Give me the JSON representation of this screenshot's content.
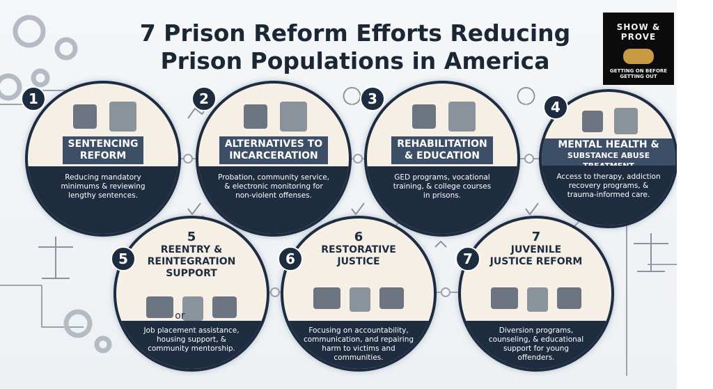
{
  "header": {
    "title_line1": "7 Prison Reform Efforts Reducing",
    "title_line2": "Prison Populations in America"
  },
  "logo": {
    "top": "SHOW & PROVE",
    "bottom": "GETTING ON BEFORE GETTING OUT"
  },
  "items": [
    {
      "number": "1",
      "heading": [
        "SENTENCING",
        "REFORM"
      ],
      "description": [
        "Reducing mandatory",
        "minimums & reviewing",
        "lengthy sentences."
      ]
    },
    {
      "number": "2",
      "heading": [
        "ALTERNATIVES TO",
        "INCARCERATION"
      ],
      "description": [
        "Probation, community service,",
        "& electronic monitoring for",
        "non-violent offenses."
      ]
    },
    {
      "number": "3",
      "heading": [
        "REHABILITATION",
        "& EDUCATION"
      ],
      "description": [
        "GED programs, vocational",
        "training, & college courses",
        "in prisons."
      ]
    },
    {
      "number": "4",
      "heading": [
        "MENTAL HEALTH &",
        "SUBSTANCE ABUSE TREATMENT"
      ],
      "description": [
        "Access to therapy, addiction",
        "recovery programs, &",
        "trauma-informed care."
      ]
    },
    {
      "number": "5",
      "heading": [
        "REENTRY &",
        "REINTEGRATION",
        "SUPPORT"
      ],
      "extra": "or",
      "description": [
        "Job placement assistance,",
        "housing support, &",
        "community mentorship."
      ]
    },
    {
      "number": "6",
      "heading": [
        "RESTORATIVE",
        "JUSTICE"
      ],
      "description": [
        "Focusing on accountability,",
        "communication, and repairing",
        "harm to victims and",
        "communities."
      ]
    },
    {
      "number": "7",
      "heading": [
        "JUVENILE",
        "JUSTICE REFORM"
      ],
      "description": [
        "Diversion programs,",
        "counseling, & educational",
        "support for young",
        "offenders."
      ]
    }
  ]
}
